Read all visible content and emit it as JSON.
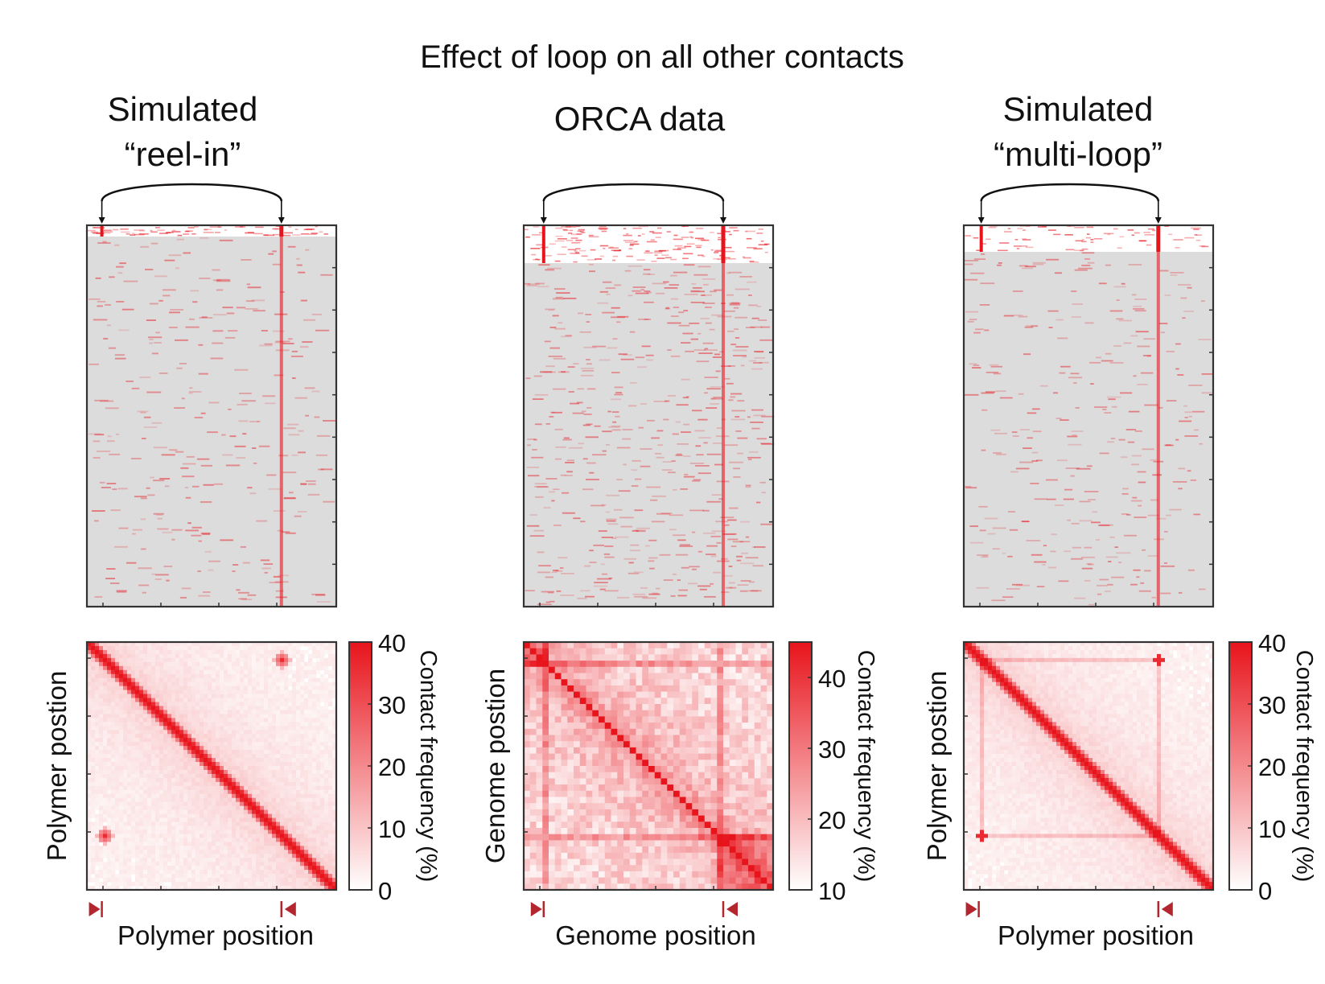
{
  "figure": {
    "title": "Effect of loop on all other contacts"
  },
  "colors": {
    "background_gray": "#dcdcdc",
    "contact_red": "#e8141c",
    "anchor_marker": "#b3262e",
    "frame": "#333333"
  },
  "chart_data": [
    {
      "type": "heatmap",
      "panel": "single-chromosome-traces",
      "title_lines": [
        "Simulated",
        "“reel-in”"
      ],
      "anchor_positions_fraction": [
        0.06,
        0.78
      ],
      "annotated_rows_fraction": 0.03,
      "rows": 120,
      "columns": 100,
      "description_values": {
        "loop_contact_column": 0.78
      }
    },
    {
      "type": "heatmap",
      "panel": "single-chromosome-traces",
      "title_lines": [
        "ORCA data"
      ],
      "anchor_positions_fraction": [
        0.08,
        0.8
      ],
      "annotated_rows_fraction": 0.1,
      "rows": 120,
      "columns": 100
    },
    {
      "type": "heatmap",
      "panel": "single-chromosome-traces",
      "title_lines": [
        "Simulated",
        "“multi-loop”"
      ],
      "anchor_positions_fraction": [
        0.07,
        0.78
      ],
      "annotated_rows_fraction": 0.07,
      "rows": 120,
      "columns": 100
    },
    {
      "type": "heatmap",
      "panel": "contact-map",
      "xlabel": "Polymer position",
      "ylabel": "Polymer postion",
      "colorbar_label": "Contact frequency (%)",
      "colorbar_ticks": [
        "0",
        "10",
        "20",
        "30",
        "40"
      ],
      "colorbar_range": [
        0,
        40
      ],
      "anchor_positions_fraction": [
        0.06,
        0.78
      ],
      "style": "reel-in"
    },
    {
      "type": "heatmap",
      "panel": "contact-map",
      "xlabel": "Genome position",
      "ylabel": "Genome postion",
      "colorbar_label": "Contact frequency (%)",
      "colorbar_ticks": [
        "10",
        "20",
        "30",
        "40"
      ],
      "colorbar_range": [
        10,
        45
      ],
      "anchor_positions_fraction": [
        0.08,
        0.8
      ],
      "style": "orca"
    },
    {
      "type": "heatmap",
      "panel": "contact-map",
      "xlabel": "Polymer position",
      "ylabel": "Polymer postion",
      "colorbar_label": "Contact frequency (%)",
      "colorbar_ticks": [
        "0",
        "10",
        "20",
        "30",
        "40"
      ],
      "colorbar_range": [
        0,
        40
      ],
      "anchor_positions_fraction": [
        0.06,
        0.78
      ],
      "style": "multi-loop"
    }
  ]
}
